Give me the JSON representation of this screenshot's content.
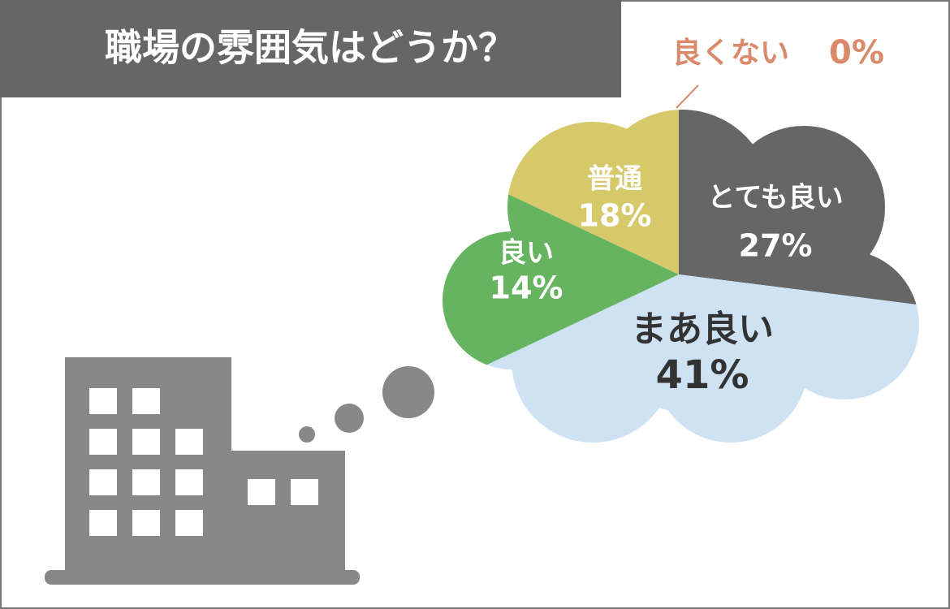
{
  "chart_data": {
    "type": "pie",
    "title": "職場の雰囲気はどうか？",
    "categories": [
      "とても良い",
      "まあ良い",
      "良い",
      "普通",
      "良くない"
    ],
    "values": [
      27,
      41,
      14,
      18,
      0
    ],
    "value_labels": [
      "27%",
      "41%",
      "14%",
      "18%",
      "0%"
    ],
    "colors": [
      "#666666",
      "#cfe2f3",
      "#66b360",
      "#d6c96a",
      "#d98a6a"
    ]
  }
}
